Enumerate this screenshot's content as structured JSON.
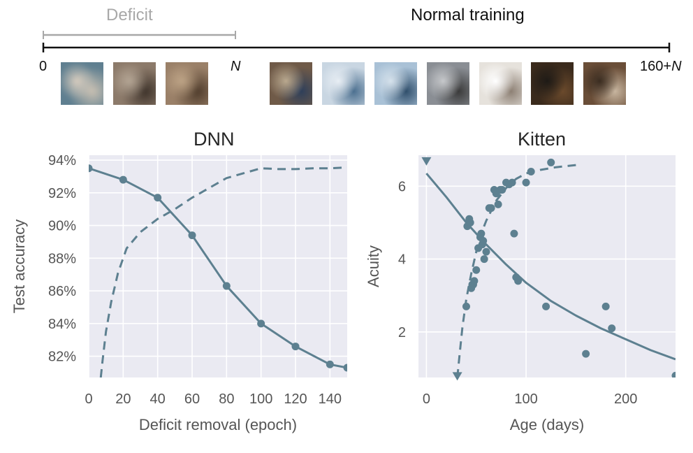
{
  "timeline": {
    "deficit_label": "Deficit",
    "normal_label": "Normal training",
    "start_label": "0",
    "n_label": "N",
    "end_label_prefix": "160+",
    "end_label_var": "N",
    "colors": {
      "deficit": "#a8a8a8",
      "main": "#111111"
    },
    "deficit_thumbnails": [
      {
        "name": "blurred-image-1",
        "colors": [
          "#5f7f90",
          "#c9c0b2",
          "#d8cdbf"
        ]
      },
      {
        "name": "blurred-image-2",
        "colors": [
          "#8c7a6a",
          "#3b3028",
          "#b7a897"
        ]
      },
      {
        "name": "blurred-image-3",
        "colors": [
          "#9a8068",
          "#4d3a2a",
          "#c0a688"
        ]
      }
    ],
    "normal_thumbnails": [
      {
        "name": "cat-image",
        "colors": [
          "#6f5a48",
          "#2e3f5a",
          "#b9a88e"
        ]
      },
      {
        "name": "ship-image-1",
        "colors": [
          "#c9d6e2",
          "#4b6f8f",
          "#e8eef4"
        ]
      },
      {
        "name": "ship-image-2",
        "colors": [
          "#a9c1d6",
          "#2f4e6b",
          "#d6e2ec"
        ]
      },
      {
        "name": "car-image",
        "colors": [
          "#8a8e94",
          "#3a3a3a",
          "#c6c8cb"
        ]
      },
      {
        "name": "bird-image",
        "colors": [
          "#e6e2dc",
          "#8c7f73",
          "#ffffff"
        ]
      },
      {
        "name": "horse-image",
        "colors": [
          "#3a2a1c",
          "#6b4a2c",
          "#1e1a16"
        ]
      },
      {
        "name": "frog-image",
        "colors": [
          "#6a4e38",
          "#c8b6a0",
          "#3a2c20"
        ]
      }
    ]
  },
  "chart_data": [
    {
      "type": "line",
      "title": "DNN",
      "xlabel": "Deficit removal (epoch)",
      "ylabel": "Test accuracy",
      "xlim": [
        0,
        150
      ],
      "ylim": [
        80.7,
        94.3
      ],
      "xticks": [
        0,
        20,
        40,
        60,
        80,
        100,
        120,
        140
      ],
      "yticks": [
        82,
        84,
        86,
        88,
        90,
        92,
        94
      ],
      "ytick_labels": [
        "82%",
        "84%",
        "86%",
        "88%",
        "90%",
        "92%",
        "94%"
      ],
      "grid": true,
      "series": [
        {
          "style": "solid-with-markers",
          "x": [
            0,
            20,
            40,
            60,
            80,
            100,
            120,
            140,
            150
          ],
          "y": [
            93.5,
            92.8,
            91.7,
            89.4,
            86.3,
            84.0,
            82.6,
            81.5,
            81.3
          ]
        },
        {
          "style": "dashed",
          "x": [
            7,
            8,
            10,
            13,
            17,
            22,
            30,
            40,
            50,
            60,
            70,
            80,
            90,
            100,
            110,
            120,
            130,
            140,
            150
          ],
          "y": [
            80.7,
            81.7,
            83.5,
            85.3,
            87.1,
            88.6,
            89.6,
            90.4,
            91.0,
            91.7,
            92.3,
            92.9,
            93.2,
            93.5,
            93.45,
            93.45,
            93.5,
            93.5,
            93.55
          ]
        }
      ]
    },
    {
      "type": "scatter",
      "title": "Kitten",
      "xlabel": "Age (days)",
      "ylabel": "Acuity",
      "xlim": [
        -8,
        250
      ],
      "ylim": [
        0.75,
        6.85
      ],
      "xticks": [
        0,
        100,
        200
      ],
      "yticks": [
        2,
        4,
        6
      ],
      "grid": true,
      "series": [
        {
          "style": "solid-curve",
          "x": [
            0,
            20,
            40,
            60,
            80,
            100,
            125,
            150,
            175,
            200,
            225,
            250
          ],
          "y": [
            6.35,
            5.7,
            5.0,
            4.4,
            3.85,
            3.35,
            2.85,
            2.45,
            2.1,
            1.8,
            1.5,
            1.25
          ]
        },
        {
          "style": "dashed-curve",
          "x": [
            31,
            33,
            36,
            40,
            45,
            50,
            55,
            60,
            70,
            80,
            90,
            100,
            115,
            130,
            150
          ],
          "y": [
            0.75,
            1.3,
            2.1,
            2.9,
            3.6,
            4.2,
            4.7,
            5.05,
            5.6,
            5.95,
            6.2,
            6.35,
            6.45,
            6.52,
            6.58
          ]
        },
        {
          "style": "points",
          "x": [
            40,
            41,
            43,
            44,
            45,
            46,
            47,
            48,
            50,
            52,
            54,
            55,
            56,
            57,
            58,
            60,
            63,
            65,
            68,
            70,
            72,
            74,
            76,
            80,
            83,
            86,
            88,
            90,
            92,
            100,
            105,
            120,
            125,
            160,
            180,
            186,
            250
          ],
          "y": [
            2.7,
            4.9,
            5.1,
            5.0,
            3.2,
            3.3,
            3.3,
            3.4,
            3.7,
            4.3,
            4.6,
            4.7,
            4.4,
            4.5,
            4.0,
            4.2,
            5.4,
            5.4,
            5.9,
            5.8,
            5.5,
            5.9,
            5.9,
            6.1,
            6.05,
            6.1,
            4.7,
            3.5,
            3.4,
            6.1,
            6.4,
            2.7,
            6.65,
            1.4,
            2.7,
            2.1,
            0.8
          ]
        },
        {
          "style": "triangle-markers",
          "x": [
            0,
            31
          ],
          "y": [
            6.7,
            0.8
          ]
        }
      ]
    }
  ],
  "colors": {
    "series": "#5d8090",
    "plot_bg": "#eaeaf2",
    "grid": "#ffffff"
  }
}
